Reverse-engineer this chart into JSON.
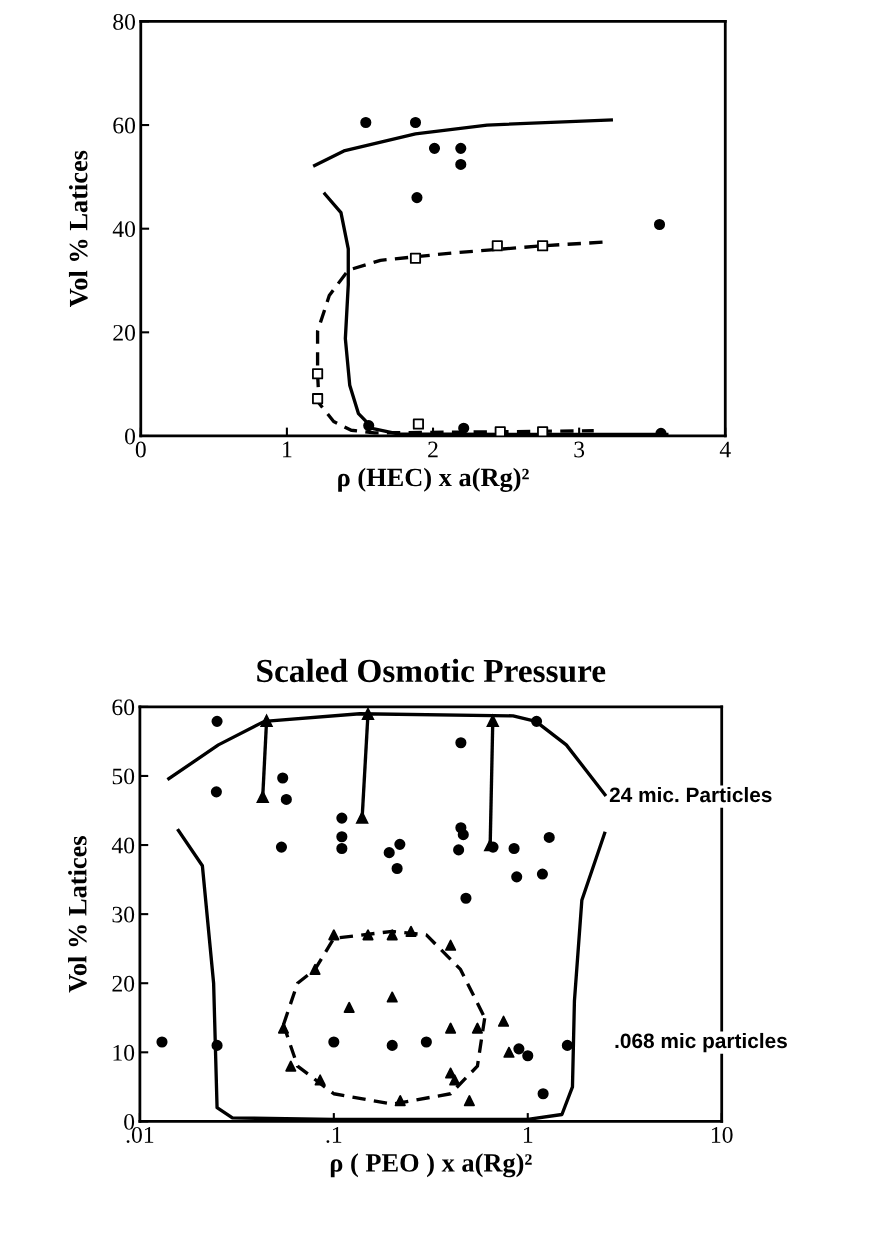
{
  "chart_data": [
    {
      "type": "scatter",
      "xlabel": "ρ (HEC) x a(Rg)²",
      "ylabel": "Vol % Latices",
      "xlim": [
        0,
        4
      ],
      "ylim": [
        0,
        80
      ],
      "xticks": [
        0,
        1,
        2,
        3,
        4
      ],
      "yticks": [
        0,
        20,
        40,
        60,
        80
      ],
      "grid": false,
      "legend": false,
      "series": [
        {
          "marker": "circle",
          "color": "#000000",
          "x": [
            1.54,
            1.88,
            2.01,
            2.19,
            2.19,
            1.89,
            3.55,
            1.56,
            2.21,
            3.56
          ],
          "values": [
            60.5,
            60.5,
            55.5,
            55.5,
            52.4,
            46,
            40.8,
            2,
            1.5,
            0.5
          ]
        },
        {
          "type": "scatter",
          "marker": "square",
          "color": "#000000",
          "x": [
            1.88,
            2.44,
            2.75,
            1.21,
            1.21,
            1.9,
            2.46,
            2.75
          ],
          "values": [
            34.3,
            36.7,
            36.7,
            12,
            7.2,
            2.3,
            0.8,
            0.8
          ]
        },
        {
          "type": "line",
          "line_style": "solid",
          "color": "#000000",
          "x": [
            1.19,
            1.39,
            1.88,
            2.37,
            3.22
          ],
          "values": [
            52.2,
            55,
            58.3,
            60,
            61
          ]
        },
        {
          "type": "line",
          "line_style": "solid",
          "color": "#000000",
          "x": [
            1.26,
            1.37,
            1.42,
            1.42,
            1.4,
            1.43,
            1.49,
            1.59,
            1.76,
            2.5,
            3.6
          ],
          "values": [
            46.7,
            43.1,
            36.1,
            29.2,
            18.8,
            9.8,
            4.3,
            1.4,
            0.4,
            0.3,
            0.3
          ]
        },
        {
          "type": "line",
          "line_style": "dashed",
          "color": "#000000",
          "x": [
            3.16,
            2.75,
            2.13,
            1.64,
            1.42,
            1.29,
            1.21,
            1.21,
            1.22,
            1.32,
            1.44,
            1.6,
            2.4,
            3.1
          ],
          "values": [
            37.4,
            36.7,
            35.3,
            33.9,
            32,
            27.1,
            20.2,
            12,
            6.3,
            2.8,
            1.1,
            0.6,
            0.8,
            1
          ]
        }
      ]
    },
    {
      "type": "scatter",
      "title": "Scaled Osmotic Pressure",
      "xlabel": "ρ ( PEO ) x a(Rg)²",
      "ylabel": "Vol % Latices",
      "log": "x",
      "xlim": [
        0.01,
        10
      ],
      "ylim": [
        0,
        60
      ],
      "xticks": [
        {
          "value": 0.01,
          "label": ".01"
        },
        {
          "value": 0.1,
          "label": ".1"
        },
        1,
        10
      ],
      "yticks": [
        0,
        10,
        20,
        30,
        40,
        50,
        60
      ],
      "grid": false,
      "legend": false,
      "annotations": [
        {
          "text": "24 mic. Particles",
          "x": 2.5,
          "y": 47
        },
        ".068 mic particles"
      ],
      "series": [
        {
          "marker": "circle",
          "color": "#000000",
          "x": [
            0.025,
            0.0248,
            0.0545,
            0.0569,
            0.0537,
            0.11,
            0.11,
            0.11,
            0.219,
            0.193,
            0.212,
            0.452,
            0.452,
            0.465,
            0.44,
            0.48,
            0.662,
            0.85,
            1.29,
            0.877,
            1.19,
            1.11,
            1.2,
            1.6
          ],
          "values": [
            57.9,
            47.7,
            49.7,
            46.6,
            39.7,
            43.9,
            41.2,
            39.5,
            40.1,
            38.9,
            36.6,
            54.8,
            42.5,
            41.5,
            39.3,
            32.3,
            39.7,
            39.5,
            41.1,
            35.4,
            35.8,
            57.9,
            4,
            11
          ]
        },
        {
          "type": "scatter",
          "marker": "triangle",
          "color": "#000000",
          "x": [
            0.055,
            0.06,
            0.085,
            0.08,
            0.1,
            0.15,
            0.2,
            0.25,
            0.4,
            0.12,
            0.2,
            0.4,
            0.4,
            0.42,
            0.55,
            0.75,
            0.8,
            0.5,
            0.22
          ],
          "values": [
            13.5,
            8,
            6,
            22,
            27,
            27,
            27,
            27.5,
            25.5,
            16.5,
            18,
            13.5,
            7,
            6,
            13.5,
            14.5,
            10,
            3,
            3
          ]
        },
        {
          "type": "scatter",
          "marker": "circle",
          "color": "#000000",
          "x": [
            0.013,
            0.025,
            0.1,
            0.2,
            0.3,
            0.9,
            1.0
          ],
          "values": [
            11.5,
            11,
            11.5,
            11,
            11.5,
            10.5,
            9.5
          ]
        },
        {
          "type": "line",
          "line_style": "solid",
          "color": "#000000",
          "x": [
            0.0141,
            0.0254,
            0.0438,
            0.136,
            0.84,
            1.1,
            1.58,
            2.5
          ],
          "values": [
            49.6,
            54.5,
            57.9,
            59,
            58.7,
            57.9,
            54.5,
            47.3
          ]
        },
        {
          "type": "line",
          "line_style": "solid",
          "color": "#000000",
          "x": [
            0.0158,
            0.021,
            0.024,
            0.025,
            0.03,
            0.1,
            1.0,
            1.5,
            1.7,
            1.74,
            1.9,
            2.49
          ],
          "values": [
            42.1,
            37,
            20,
            2,
            0.5,
            0.3,
            0.3,
            1,
            5,
            17.4,
            32,
            41.7
          ]
        },
        {
          "type": "line",
          "line_style": "dashed",
          "color": "#000000",
          "x": [
            0.055,
            0.065,
            0.08,
            0.1,
            0.2,
            0.3,
            0.45,
            0.6
          ],
          "values": [
            14,
            20,
            22,
            26.5,
            27.5,
            27,
            22,
            15
          ]
        },
        {
          "type": "line",
          "line_style": "dashed",
          "color": "#000000",
          "x": [
            0.055,
            0.065,
            0.1,
            0.2,
            0.4,
            0.55,
            0.6
          ],
          "values": [
            14,
            8,
            4,
            2.5,
            4,
            8,
            15
          ]
        },
        {
          "type": "line",
          "line_style": "solid",
          "marker": "triangle",
          "color": "#000000",
          "x": [
            0.043,
            0.045
          ],
          "values": [
            47,
            58
          ]
        },
        {
          "type": "line",
          "line_style": "solid",
          "marker": "triangle",
          "color": "#000000",
          "x": [
            0.14,
            0.15
          ],
          "values": [
            44,
            59
          ]
        },
        {
          "type": "line",
          "line_style": "solid",
          "marker": "triangle",
          "color": "#000000",
          "x": [
            0.64,
            0.66
          ],
          "values": [
            40,
            58
          ]
        }
      ]
    }
  ]
}
